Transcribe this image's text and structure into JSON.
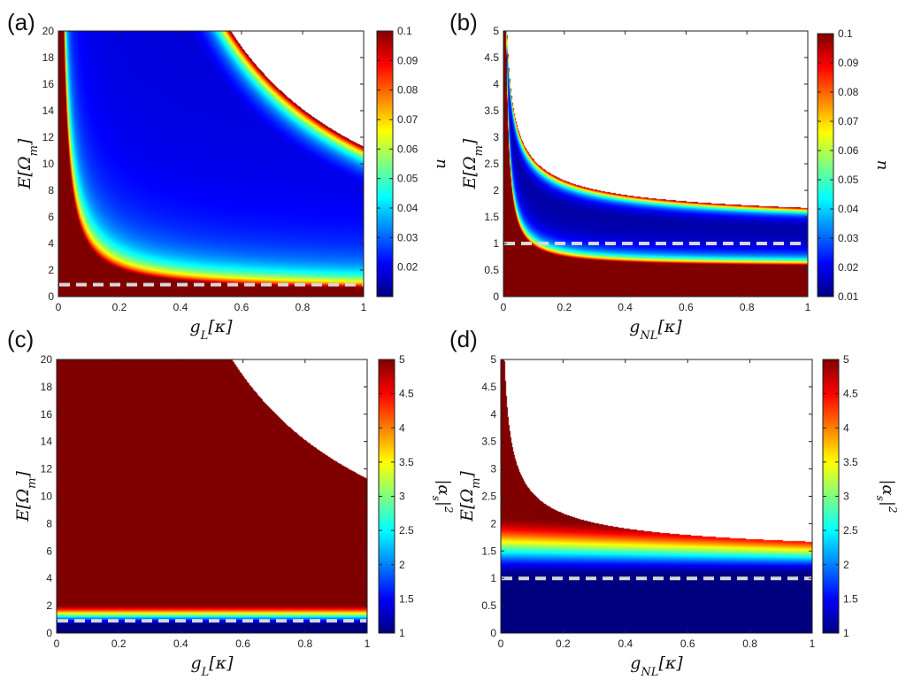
{
  "figure": {
    "background": "#ffffff",
    "axis_color": "#222222",
    "dash_color": "#d8d8d8",
    "out_of_range_color": "#7f0000"
  },
  "chart_data": [
    {
      "panel": "(a)",
      "type": "heatmap",
      "title": "",
      "xlabel": "g_L[κ]",
      "ylabel": "E[Ω_m]",
      "xlim": [
        0,
        1
      ],
      "ylim": [
        0,
        20
      ],
      "xticks": [
        0,
        0.2,
        0.4,
        0.6,
        0.8,
        1
      ],
      "xtick_labels": [
        "0",
        "0.2",
        "0.4",
        "0.6",
        "0.8",
        "1"
      ],
      "yticks": [
        0,
        2,
        4,
        6,
        8,
        10,
        12,
        14,
        16,
        18,
        20
      ],
      "ytick_labels": [
        "0",
        "2",
        "4",
        "6",
        "8",
        "10",
        "12",
        "14",
        "16",
        "18",
        "20"
      ],
      "colorbar": {
        "label": "n",
        "range": [
          0.01,
          0.1
        ],
        "ticks": [
          0.02,
          0.03,
          0.04,
          0.05,
          0.06,
          0.07,
          0.08,
          0.09,
          0.1
        ],
        "tick_labels": [
          "0.02",
          "0.03",
          "0.04",
          "0.05",
          "0.06",
          "0.07",
          "0.08",
          "0.09",
          "0.1"
        ]
      },
      "colormap": "jet",
      "dashed_line_E": 0.9,
      "structure": {
        "lower_boundary_E": "~0.35/g_L + 0.3 (red above ~0.1 band near lower-left)",
        "upper_boundary_E": "~11.3/g_L (white region above)",
        "minimum": "deep blue ~0.015 in central valley"
      }
    },
    {
      "panel": "(b)",
      "type": "heatmap",
      "title": "",
      "xlabel": "g_NL[κ]",
      "ylabel": "E[Ω_m]",
      "xlim": [
        0,
        1
      ],
      "ylim": [
        0,
        5
      ],
      "xticks": [
        0,
        0.2,
        0.4,
        0.6,
        0.8,
        1
      ],
      "xtick_labels": [
        "0",
        "0.2",
        "0.4",
        "0.6",
        "0.8",
        "1"
      ],
      "yticks": [
        0,
        0.5,
        1,
        1.5,
        2,
        2.5,
        3,
        3.5,
        4,
        4.5,
        5
      ],
      "ytick_labels": [
        "0",
        "0.5",
        "1",
        "1.5",
        "2",
        "2.5",
        "3",
        "3.5",
        "4",
        "4.5",
        "5"
      ],
      "colorbar": {
        "label": "n",
        "range": [
          0.01,
          0.1
        ],
        "ticks": [
          0.01,
          0.02,
          0.03,
          0.04,
          0.05,
          0.06,
          0.07,
          0.08,
          0.09,
          0.1
        ],
        "tick_labels": [
          "0.01",
          "0.02",
          "0.03",
          "0.04",
          "0.05",
          "0.06",
          "0.07",
          "0.08",
          "0.09",
          "0.1"
        ]
      },
      "colormap": "jet",
      "dashed_line_E": 1.0,
      "structure": {
        "lower_boundary_E": "~0.55 + 0.04/g_NL",
        "upper_boundary_E": "~1.25 + 0.42/sqrt(g_NL) (white region above)"
      }
    },
    {
      "panel": "(c)",
      "type": "heatmap",
      "title": "",
      "xlabel": "g_L[κ]",
      "ylabel": "E[Ω_m]",
      "xlim": [
        0,
        1
      ],
      "ylim": [
        0,
        20
      ],
      "xticks": [
        0,
        0.2,
        0.4,
        0.6,
        0.8,
        1
      ],
      "xtick_labels": [
        "0",
        "0.2",
        "0.4",
        "0.6",
        "0.8",
        "1"
      ],
      "yticks": [
        0,
        2,
        4,
        6,
        8,
        10,
        12,
        14,
        16,
        18,
        20
      ],
      "ytick_labels": [
        "0",
        "2",
        "4",
        "6",
        "8",
        "10",
        "12",
        "14",
        "16",
        "18",
        "20"
      ],
      "colorbar": {
        "label": "|α_s|²",
        "range": [
          1,
          5
        ],
        "ticks": [
          1,
          1.5,
          2,
          2.5,
          3,
          3.5,
          4,
          4.5,
          5
        ],
        "tick_labels": [
          "1",
          "1.5",
          "2",
          "2.5",
          "3",
          "3.5",
          "4",
          "4.5",
          "5"
        ]
      },
      "colormap": "jet",
      "dashed_line_E": 0.9,
      "structure": {
        "transition_band_E": [
          0.6,
          2.1
        ],
        "upper_boundary_E": "~11.3/g_L (white region above)"
      }
    },
    {
      "panel": "(d)",
      "type": "heatmap",
      "title": "",
      "xlabel": "g_NL[κ]",
      "ylabel": "E[Ω_m]",
      "xlim": [
        0,
        1
      ],
      "ylim": [
        0,
        5
      ],
      "xticks": [
        0,
        0.2,
        0.4,
        0.6,
        0.8,
        1
      ],
      "xtick_labels": [
        "0",
        "0.2",
        "0.4",
        "0.6",
        "0.8",
        "1"
      ],
      "yticks": [
        0,
        0.5,
        1,
        1.5,
        2,
        2.5,
        3,
        3.5,
        4,
        4.5,
        5
      ],
      "ytick_labels": [
        "0",
        "0.5",
        "1",
        "1.5",
        "2",
        "2.5",
        "3",
        "3.5",
        "4",
        "4.5",
        "5"
      ],
      "colorbar": {
        "label": "|α_s|²",
        "range": [
          1,
          5
        ],
        "ticks": [
          1,
          1.5,
          2,
          2.5,
          3,
          3.5,
          4,
          4.5,
          5
        ],
        "tick_labels": [
          "1",
          "1.5",
          "2",
          "2.5",
          "3",
          "3.5",
          "4",
          "4.5",
          "5"
        ]
      },
      "colormap": "jet",
      "dashed_line_E": 1.0,
      "structure": {
        "transition_band_E": [
          1.05,
          2.2
        ],
        "upper_boundary_E": "~1.25 + 0.42/sqrt(g_NL) (white region above)"
      }
    }
  ]
}
